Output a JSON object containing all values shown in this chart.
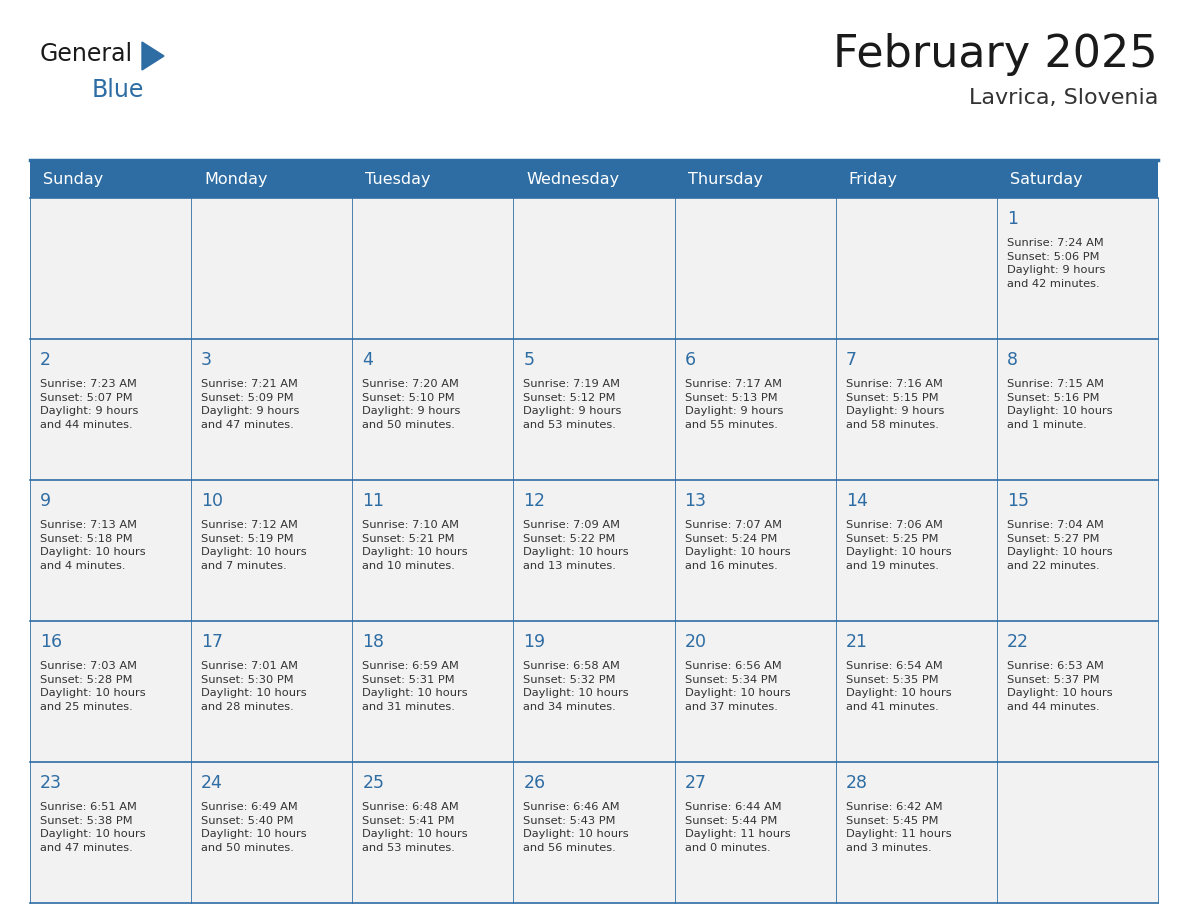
{
  "title": "February 2025",
  "subtitle": "Lavrica, Slovenia",
  "days_of_week": [
    "Sunday",
    "Monday",
    "Tuesday",
    "Wednesday",
    "Thursday",
    "Friday",
    "Saturday"
  ],
  "header_bg_color": "#2E6DA4",
  "header_text_color": "#FFFFFF",
  "background_color": "#FFFFFF",
  "cell_bg_color": "#F2F2F2",
  "day_number_color": "#2E6DA4",
  "text_color": "#333333",
  "border_color": "#2E6DA4",
  "weeks": [
    [
      {
        "day": null,
        "info": null
      },
      {
        "day": null,
        "info": null
      },
      {
        "day": null,
        "info": null
      },
      {
        "day": null,
        "info": null
      },
      {
        "day": null,
        "info": null
      },
      {
        "day": null,
        "info": null
      },
      {
        "day": 1,
        "info": "Sunrise: 7:24 AM\nSunset: 5:06 PM\nDaylight: 9 hours\nand 42 minutes."
      }
    ],
    [
      {
        "day": 2,
        "info": "Sunrise: 7:23 AM\nSunset: 5:07 PM\nDaylight: 9 hours\nand 44 minutes."
      },
      {
        "day": 3,
        "info": "Sunrise: 7:21 AM\nSunset: 5:09 PM\nDaylight: 9 hours\nand 47 minutes."
      },
      {
        "day": 4,
        "info": "Sunrise: 7:20 AM\nSunset: 5:10 PM\nDaylight: 9 hours\nand 50 minutes."
      },
      {
        "day": 5,
        "info": "Sunrise: 7:19 AM\nSunset: 5:12 PM\nDaylight: 9 hours\nand 53 minutes."
      },
      {
        "day": 6,
        "info": "Sunrise: 7:17 AM\nSunset: 5:13 PM\nDaylight: 9 hours\nand 55 minutes."
      },
      {
        "day": 7,
        "info": "Sunrise: 7:16 AM\nSunset: 5:15 PM\nDaylight: 9 hours\nand 58 minutes."
      },
      {
        "day": 8,
        "info": "Sunrise: 7:15 AM\nSunset: 5:16 PM\nDaylight: 10 hours\nand 1 minute."
      }
    ],
    [
      {
        "day": 9,
        "info": "Sunrise: 7:13 AM\nSunset: 5:18 PM\nDaylight: 10 hours\nand 4 minutes."
      },
      {
        "day": 10,
        "info": "Sunrise: 7:12 AM\nSunset: 5:19 PM\nDaylight: 10 hours\nand 7 minutes."
      },
      {
        "day": 11,
        "info": "Sunrise: 7:10 AM\nSunset: 5:21 PM\nDaylight: 10 hours\nand 10 minutes."
      },
      {
        "day": 12,
        "info": "Sunrise: 7:09 AM\nSunset: 5:22 PM\nDaylight: 10 hours\nand 13 minutes."
      },
      {
        "day": 13,
        "info": "Sunrise: 7:07 AM\nSunset: 5:24 PM\nDaylight: 10 hours\nand 16 minutes."
      },
      {
        "day": 14,
        "info": "Sunrise: 7:06 AM\nSunset: 5:25 PM\nDaylight: 10 hours\nand 19 minutes."
      },
      {
        "day": 15,
        "info": "Sunrise: 7:04 AM\nSunset: 5:27 PM\nDaylight: 10 hours\nand 22 minutes."
      }
    ],
    [
      {
        "day": 16,
        "info": "Sunrise: 7:03 AM\nSunset: 5:28 PM\nDaylight: 10 hours\nand 25 minutes."
      },
      {
        "day": 17,
        "info": "Sunrise: 7:01 AM\nSunset: 5:30 PM\nDaylight: 10 hours\nand 28 minutes."
      },
      {
        "day": 18,
        "info": "Sunrise: 6:59 AM\nSunset: 5:31 PM\nDaylight: 10 hours\nand 31 minutes."
      },
      {
        "day": 19,
        "info": "Sunrise: 6:58 AM\nSunset: 5:32 PM\nDaylight: 10 hours\nand 34 minutes."
      },
      {
        "day": 20,
        "info": "Sunrise: 6:56 AM\nSunset: 5:34 PM\nDaylight: 10 hours\nand 37 minutes."
      },
      {
        "day": 21,
        "info": "Sunrise: 6:54 AM\nSunset: 5:35 PM\nDaylight: 10 hours\nand 41 minutes."
      },
      {
        "day": 22,
        "info": "Sunrise: 6:53 AM\nSunset: 5:37 PM\nDaylight: 10 hours\nand 44 minutes."
      }
    ],
    [
      {
        "day": 23,
        "info": "Sunrise: 6:51 AM\nSunset: 5:38 PM\nDaylight: 10 hours\nand 47 minutes."
      },
      {
        "day": 24,
        "info": "Sunrise: 6:49 AM\nSunset: 5:40 PM\nDaylight: 10 hours\nand 50 minutes."
      },
      {
        "day": 25,
        "info": "Sunrise: 6:48 AM\nSunset: 5:41 PM\nDaylight: 10 hours\nand 53 minutes."
      },
      {
        "day": 26,
        "info": "Sunrise: 6:46 AM\nSunset: 5:43 PM\nDaylight: 10 hours\nand 56 minutes."
      },
      {
        "day": 27,
        "info": "Sunrise: 6:44 AM\nSunset: 5:44 PM\nDaylight: 11 hours\nand 0 minutes."
      },
      {
        "day": 28,
        "info": "Sunrise: 6:42 AM\nSunset: 5:45 PM\nDaylight: 11 hours\nand 3 minutes."
      },
      {
        "day": null,
        "info": null
      }
    ]
  ],
  "logo_text_general": "General",
  "logo_text_blue": "Blue",
  "logo_color_general": "#1a1a1a",
  "logo_color_blue": "#2E6DA4",
  "logo_triangle_color": "#2E6DA4"
}
